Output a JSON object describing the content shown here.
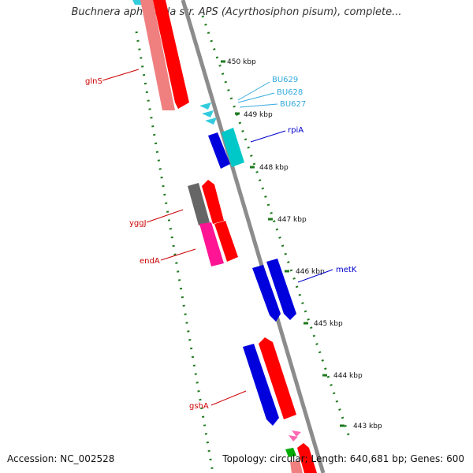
{
  "title": "Buchnera aphidicola str. APS (Acyrthosiphon pisum), complete...",
  "footer": {
    "accession": "Accession: NC_002528",
    "summary": "Topology: circular; Length: 640,681 bp; Genes: 600"
  },
  "colors": {
    "backbone": "#8c8c8c",
    "scale_ticks": "#1f7a1f",
    "forward_gene": "#ff0000",
    "forward_gene_light": "#f08080",
    "reverse_gene": "#0000dd",
    "rRNA_tRNA": "#33ccdd",
    "pseudo": "#666666",
    "misc": "#ff1493",
    "label_red": "#cc0000",
    "label_blue": "#0000cc",
    "label_cyan": "#33aadd"
  },
  "kbp_ticks": [
    "450 kbp",
    "449 kbp",
    "448 kbp",
    "447 kbp",
    "446 kbp",
    "445 kbp",
    "444 kbp",
    "443 kbp"
  ],
  "genes": [
    {
      "name": "glnS",
      "strand": "+",
      "color": "#f08080"
    },
    {
      "name": "BU629",
      "strand": "-",
      "color": "#33ccdd"
    },
    {
      "name": "BU628",
      "strand": "-",
      "color": "#33ccdd"
    },
    {
      "name": "BU627",
      "strand": "-",
      "color": "#33ccdd"
    },
    {
      "name": "rpiA",
      "strand": "-",
      "color": "#00cccc"
    },
    {
      "name": "yggJ",
      "strand": "+",
      "color": "#666666"
    },
    {
      "name": "endA",
      "strand": "+",
      "color": "#ff1493"
    },
    {
      "name": "metK",
      "strand": "-",
      "color": "#0000dd"
    },
    {
      "name": "gshA",
      "strand": "-",
      "color": "#0000dd"
    }
  ]
}
